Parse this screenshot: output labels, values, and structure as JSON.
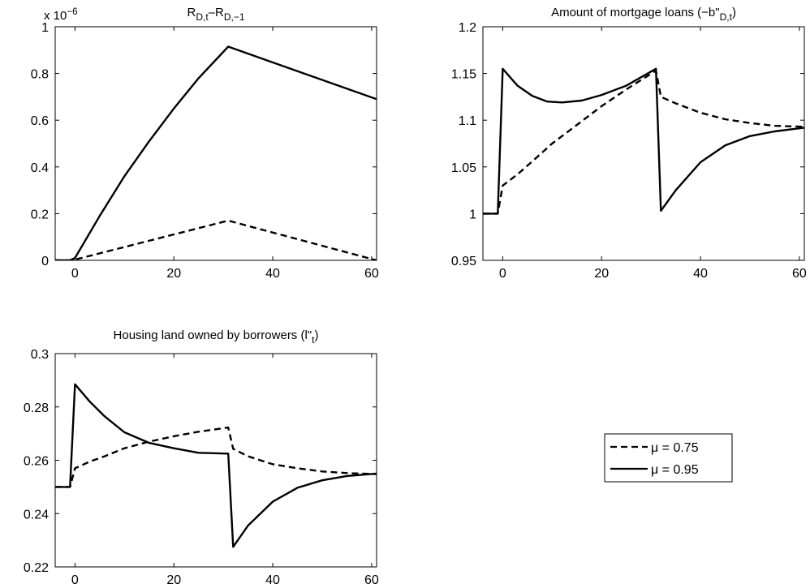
{
  "legend": {
    "placement": "bottom-right empty panel",
    "entries": [
      {
        "label": "μ = 0.75",
        "style": "dashed"
      },
      {
        "label": "μ = 0.95",
        "style": "solid"
      }
    ]
  },
  "chart_data": [
    {
      "type": "line",
      "title_parts": [
        {
          "t": "R"
        },
        {
          "t": "D,t",
          "sub": true
        },
        {
          "t": "–R"
        },
        {
          "t": "D,−1",
          "sub": true
        }
      ],
      "multiplier_parts": [
        {
          "t": "x 10"
        },
        {
          "t": "−6",
          "sup": true
        }
      ],
      "xlim": [
        -4,
        61
      ],
      "ylim": [
        0,
        1
      ],
      "xticks": [
        0,
        20,
        40,
        60
      ],
      "xtick_labels": [
        "0",
        "20",
        "40",
        "60"
      ],
      "yticks": [
        0,
        0.2,
        0.4,
        0.6,
        0.8,
        1
      ],
      "ytick_labels": [
        "0",
        "0.2",
        "0.4",
        "0.6",
        "0.8",
        "1"
      ],
      "series": [
        {
          "name": "μ = 0.75",
          "style": "dashed",
          "points": [
            [
              -4,
              0
            ],
            [
              -1,
              0
            ],
            [
              0,
              0.003
            ],
            [
              31,
              0.17
            ],
            [
              61,
              0
            ]
          ]
        },
        {
          "name": "μ = 0.95",
          "style": "solid",
          "points": [
            [
              -4,
              0
            ],
            [
              -1,
              0
            ],
            [
              0,
              0.01
            ],
            [
              5,
              0.19
            ],
            [
              10,
              0.36
            ],
            [
              15,
              0.51
            ],
            [
              20,
              0.65
            ],
            [
              25,
              0.78
            ],
            [
              31,
              0.915
            ],
            [
              61,
              0.69
            ]
          ]
        }
      ]
    },
    {
      "type": "line",
      "title_parts": [
        {
          "t": "Amount of mortgage loans (−b\""
        },
        {
          "t": "D,t",
          "sub": true
        },
        {
          "t": ")"
        }
      ],
      "xlim": [
        -4,
        61
      ],
      "ylim": [
        0.95,
        1.2
      ],
      "xticks": [
        0,
        20,
        40,
        60
      ],
      "xtick_labels": [
        "0",
        "20",
        "40",
        "60"
      ],
      "yticks": [
        0.95,
        1,
        1.05,
        1.1,
        1.15,
        1.2
      ],
      "ytick_labels": [
        "0.95",
        "1",
        "1.05",
        "1.1",
        "1.15",
        "1.2"
      ],
      "series": [
        {
          "name": "μ = 0.75",
          "style": "dashed",
          "points": [
            [
              -4,
              1
            ],
            [
              -1,
              1
            ],
            [
              0,
              1.03
            ],
            [
              3,
              1.042
            ],
            [
              6,
              1.056
            ],
            [
              10,
              1.075
            ],
            [
              15,
              1.095
            ],
            [
              20,
              1.115
            ],
            [
              25,
              1.133
            ],
            [
              31,
              1.153
            ],
            [
              32,
              1.125
            ],
            [
              35,
              1.118
            ],
            [
              40,
              1.108
            ],
            [
              45,
              1.101
            ],
            [
              50,
              1.097
            ],
            [
              55,
              1.094
            ],
            [
              61,
              1.093
            ]
          ]
        },
        {
          "name": "μ = 0.95",
          "style": "solid",
          "points": [
            [
              -4,
              1
            ],
            [
              -1,
              1
            ],
            [
              0,
              1.155
            ],
            [
              3,
              1.137
            ],
            [
              6,
              1.126
            ],
            [
              9,
              1.12
            ],
            [
              12,
              1.119
            ],
            [
              16,
              1.121
            ],
            [
              20,
              1.127
            ],
            [
              25,
              1.137
            ],
            [
              31,
              1.155
            ],
            [
              32,
              1.003
            ],
            [
              35,
              1.025
            ],
            [
              40,
              1.055
            ],
            [
              45,
              1.073
            ],
            [
              50,
              1.083
            ],
            [
              55,
              1.088
            ],
            [
              61,
              1.092
            ]
          ]
        }
      ]
    },
    {
      "type": "line",
      "title_parts": [
        {
          "t": "Housing land owned by borrowers (l\""
        },
        {
          "t": "t",
          "sub": true
        },
        {
          "t": ")"
        }
      ],
      "xlim": [
        -4,
        61
      ],
      "ylim": [
        0.22,
        0.3
      ],
      "xticks": [
        0,
        20,
        40,
        60
      ],
      "xtick_labels": [
        "0",
        "20",
        "40",
        "60"
      ],
      "yticks": [
        0.22,
        0.24,
        0.26,
        0.28,
        0.3
      ],
      "ytick_labels": [
        "0.22",
        "0.24",
        "0.26",
        "0.28",
        "0.3"
      ],
      "series": [
        {
          "name": "μ = 0.75",
          "style": "dashed",
          "points": [
            [
              -4,
              0.25
            ],
            [
              -1,
              0.25
            ],
            [
              0,
              0.257
            ],
            [
              3,
              0.2595
            ],
            [
              6,
              0.2615
            ],
            [
              10,
              0.2645
            ],
            [
              15,
              0.267
            ],
            [
              20,
              0.269
            ],
            [
              25,
              0.2707
            ],
            [
              31,
              0.2723
            ],
            [
              32,
              0.2643
            ],
            [
              35,
              0.2615
            ],
            [
              40,
              0.2585
            ],
            [
              45,
              0.257
            ],
            [
              50,
              0.2558
            ],
            [
              55,
              0.2552
            ],
            [
              61,
              0.2548
            ]
          ]
        },
        {
          "name": "μ = 0.95",
          "style": "solid",
          "points": [
            [
              -4,
              0.25
            ],
            [
              -1,
              0.25
            ],
            [
              0,
              0.2885
            ],
            [
              3,
              0.282
            ],
            [
              6,
              0.2765
            ],
            [
              10,
              0.2705
            ],
            [
              15,
              0.2665
            ],
            [
              20,
              0.2645
            ],
            [
              25,
              0.2628
            ],
            [
              31,
              0.2625
            ],
            [
              32,
              0.2275
            ],
            [
              35,
              0.2355
            ],
            [
              40,
              0.2445
            ],
            [
              45,
              0.2497
            ],
            [
              50,
              0.2525
            ],
            [
              55,
              0.2541
            ],
            [
              61,
              0.255
            ]
          ]
        }
      ]
    }
  ]
}
